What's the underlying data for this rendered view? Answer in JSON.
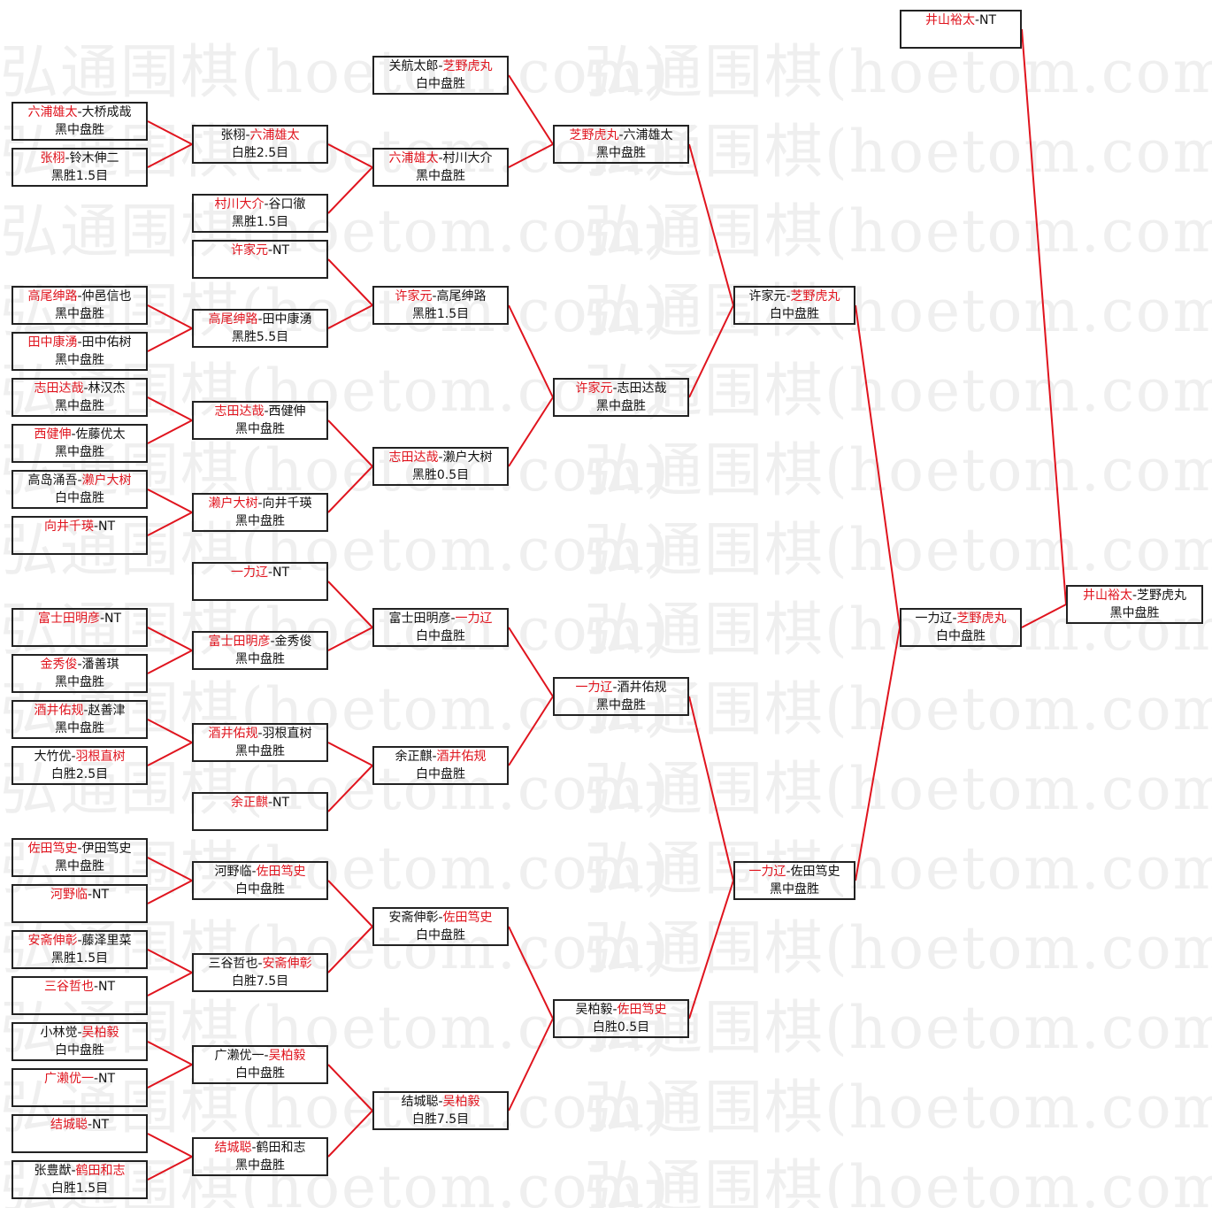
{
  "watermark": "弘通围棋(hoetom.com)",
  "colors": {
    "winner": "#e0141e",
    "line": "#e0141e",
    "border": "#222222",
    "watermark": "#efefef"
  },
  "rounds": [
    [
      {
        "p1": "六浦雄太",
        "p2": "大桥成哉",
        "winner": 1,
        "result": "黑中盘胜"
      },
      {
        "p1": "张栩",
        "p2": "铃木伸二",
        "winner": 1,
        "result": "黑胜1.5目"
      },
      {
        "p1": "高尾绅路",
        "p2": "仲邑信也",
        "winner": 1,
        "result": "黑中盘胜"
      },
      {
        "p1": "田中康湧",
        "p2": "田中佑树",
        "winner": 1,
        "result": "黑中盘胜"
      },
      {
        "p1": "志田达哉",
        "p2": "林汉杰",
        "winner": 1,
        "result": "黑中盘胜"
      },
      {
        "p1": "西健伸",
        "p2": "佐藤优太",
        "winner": 1,
        "result": "黑中盘胜"
      },
      {
        "p1": "高岛涌吾",
        "p2": "濑户大树",
        "winner": 2,
        "result": "白中盘胜"
      },
      {
        "p1": "向井千瑛",
        "p2": "NT",
        "winner": 1,
        "result": ""
      },
      {
        "p1": "富士田明彦",
        "p2": "NT",
        "winner": 1,
        "result": ""
      },
      {
        "p1": "金秀俊",
        "p2": "潘善琪",
        "winner": 1,
        "result": "黑中盘胜"
      },
      {
        "p1": "酒井佑规",
        "p2": "赵善津",
        "winner": 1,
        "result": "黑中盘胜"
      },
      {
        "p1": "大竹优",
        "p2": "羽根直树",
        "winner": 2,
        "result": "白胜2.5目"
      },
      {
        "p1": "佐田笃史",
        "p2": "伊田笃史",
        "winner": 1,
        "result": "黑中盘胜"
      },
      {
        "p1": "河野临",
        "p2": "NT",
        "winner": 1,
        "result": ""
      },
      {
        "p1": "安斋伸彰",
        "p2": "藤泽里菜",
        "winner": 1,
        "result": "黑胜1.5目"
      },
      {
        "p1": "三谷哲也",
        "p2": "NT",
        "winner": 1,
        "result": ""
      },
      {
        "p1": "小林觉",
        "p2": "吴柏毅",
        "winner": 2,
        "result": "白中盘胜"
      },
      {
        "p1": "广濑优一",
        "p2": "NT",
        "winner": 1,
        "result": ""
      },
      {
        "p1": "结城聪",
        "p2": "NT",
        "winner": 1,
        "result": ""
      },
      {
        "p1": "张豊猷",
        "p2": "鹤田和志",
        "winner": 2,
        "result": "白胜1.5目"
      }
    ],
    [
      {
        "p1": "张栩",
        "p2": "六浦雄太",
        "winner": 2,
        "result": "白胜2.5目",
        "from": [
          0,
          1
        ]
      },
      {
        "p1": "村川大介",
        "p2": "谷口徹",
        "winner": 1,
        "result": "黑胜1.5目",
        "from": []
      },
      {
        "p1": "许家元",
        "p2": "NT",
        "winner": 1,
        "result": "",
        "from": []
      },
      {
        "p1": "高尾绅路",
        "p2": "田中康湧",
        "winner": 1,
        "result": "黑胜5.5目",
        "from": [
          2,
          3
        ]
      },
      {
        "p1": "志田达哉",
        "p2": "西健伸",
        "winner": 1,
        "result": "黑中盘胜",
        "from": [
          4,
          5
        ]
      },
      {
        "p1": "濑户大树",
        "p2": "向井千瑛",
        "winner": 1,
        "result": "黑中盘胜",
        "from": [
          6,
          7
        ]
      },
      {
        "p1": "一力辽",
        "p2": "NT",
        "winner": 1,
        "result": "",
        "from": []
      },
      {
        "p1": "富士田明彦",
        "p2": "金秀俊",
        "winner": 1,
        "result": "黑中盘胜",
        "from": [
          8,
          9
        ]
      },
      {
        "p1": "酒井佑规",
        "p2": "羽根直树",
        "winner": 1,
        "result": "黑中盘胜",
        "from": [
          10,
          11
        ]
      },
      {
        "p1": "余正麒",
        "p2": "NT",
        "winner": 1,
        "result": "",
        "from": []
      },
      {
        "p1": "河野临",
        "p2": "佐田笃史",
        "winner": 2,
        "result": "白中盘胜",
        "from": [
          12,
          13
        ]
      },
      {
        "p1": "三谷哲也",
        "p2": "安斋伸彰",
        "winner": 2,
        "result": "白胜7.5目",
        "from": [
          14,
          15
        ]
      },
      {
        "p1": "广濑优一",
        "p2": "吴柏毅",
        "winner": 2,
        "result": "白中盘胜",
        "from": [
          16,
          17
        ]
      },
      {
        "p1": "结城聪",
        "p2": "鹤田和志",
        "winner": 1,
        "result": "黑中盘胜",
        "from": [
          18,
          19
        ]
      }
    ],
    [
      {
        "p1": "关航太郎",
        "p2": "芝野虎丸",
        "winner": 2,
        "result": "白中盘胜",
        "from": []
      },
      {
        "p1": "六浦雄太",
        "p2": "村川大介",
        "winner": 1,
        "result": "黑中盘胜",
        "from": [
          0,
          1
        ]
      },
      {
        "p1": "许家元",
        "p2": "高尾绅路",
        "winner": 1,
        "result": "黑胜1.5目",
        "from": [
          2,
          3
        ]
      },
      {
        "p1": "志田达哉",
        "p2": "濑户大树",
        "winner": 1,
        "result": "黑胜0.5目",
        "from": [
          4,
          5
        ]
      },
      {
        "p1": "富士田明彦",
        "p2": "一力辽",
        "winner": 2,
        "result": "白中盘胜",
        "from": [
          6,
          7
        ]
      },
      {
        "p1": "余正麒",
        "p2": "酒井佑规",
        "winner": 2,
        "result": "白中盘胜",
        "from": [
          8,
          9
        ]
      },
      {
        "p1": "安斋伸彰",
        "p2": "佐田笃史",
        "winner": 2,
        "result": "白中盘胜",
        "from": [
          10,
          11
        ]
      },
      {
        "p1": "结城聪",
        "p2": "吴柏毅",
        "winner": 2,
        "result": "白胜7.5目",
        "from": [
          12,
          13
        ]
      }
    ],
    [
      {
        "p1": "芝野虎丸",
        "p2": "六浦雄太",
        "winner": 1,
        "result": "黑中盘胜",
        "from": [
          0,
          1
        ]
      },
      {
        "p1": "许家元",
        "p2": "志田达哉",
        "winner": 1,
        "result": "黑中盘胜",
        "from": [
          2,
          3
        ]
      },
      {
        "p1": "一力辽",
        "p2": "酒井佑规",
        "winner": 1,
        "result": "黑中盘胜",
        "from": [
          4,
          5
        ]
      },
      {
        "p1": "吴柏毅",
        "p2": "佐田笃史",
        "winner": 2,
        "result": "白胜0.5目",
        "from": [
          6,
          7
        ]
      }
    ],
    [
      {
        "p1": "许家元",
        "p2": "芝野虎丸",
        "winner": 2,
        "result": "白中盘胜",
        "from": [
          0,
          1
        ]
      },
      {
        "p1": "一力辽",
        "p2": "佐田笃史",
        "winner": 1,
        "result": "黑中盘胜",
        "from": [
          2,
          3
        ]
      }
    ],
    [
      {
        "p1": "井山裕太",
        "p2": "NT",
        "winner": 1,
        "result": "",
        "from": []
      },
      {
        "p1": "一力辽",
        "p2": "芝野虎丸",
        "winner": 2,
        "result": "白中盘胜",
        "from": [
          0,
          1
        ]
      }
    ],
    [
      {
        "p1": "井山裕太",
        "p2": "芝野虎丸",
        "winner": 1,
        "result": "黑中盘胜",
        "from": [
          0,
          1
        ]
      }
    ]
  ]
}
